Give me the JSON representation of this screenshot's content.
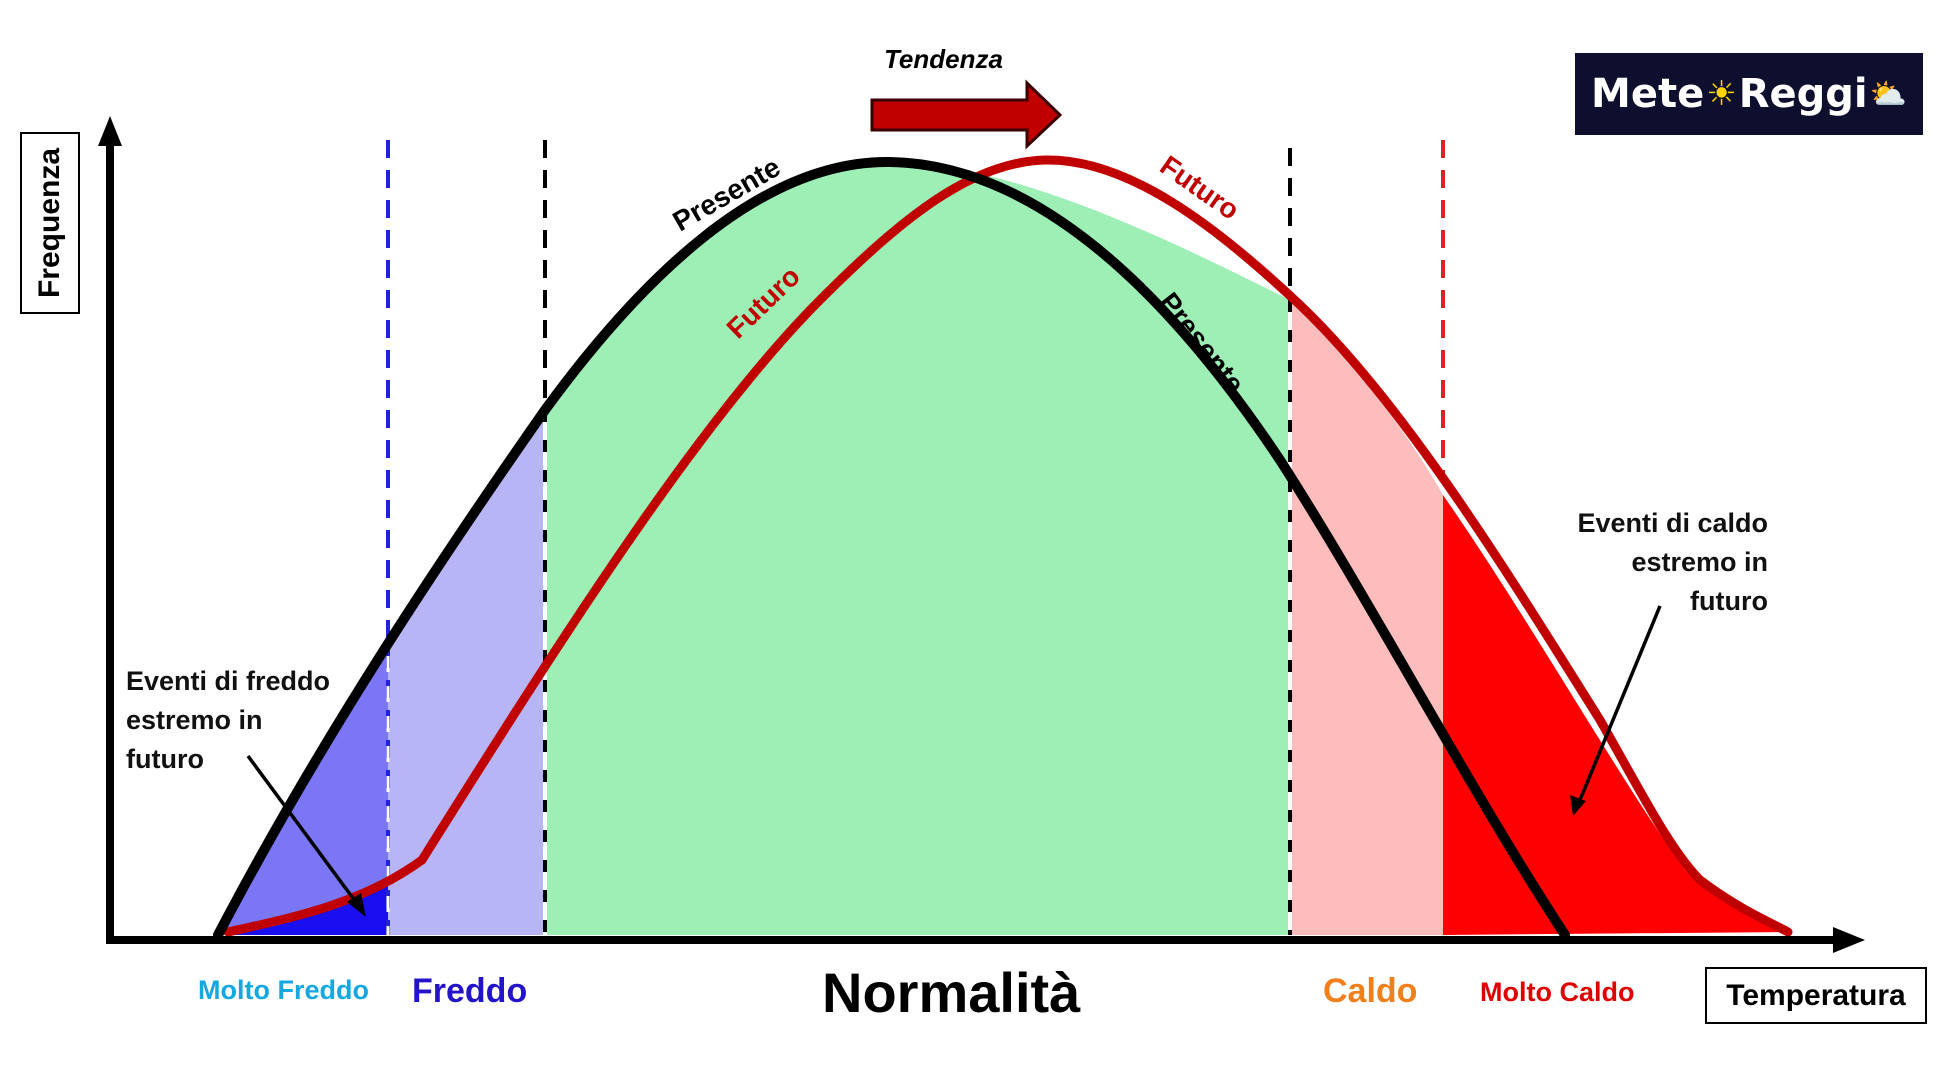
{
  "title_trend": "Tendenza",
  "logo": {
    "text_left": "Mete",
    "text_right": "Reggi",
    "sun_icon": "☀",
    "cloud_icon": "⛅"
  },
  "axes": {
    "y_label": "Frequenza",
    "x_label": "Temperatura"
  },
  "categories": {
    "molto_freddo": "Molto Freddo",
    "freddo": "Freddo",
    "normalita": "Normalità",
    "caldo": "Caldo",
    "molto_caldo": "Molto Caldo"
  },
  "curves": {
    "present_label": "Presente",
    "future_label": "Futuro"
  },
  "annotations": {
    "cold": [
      "Eventi di freddo",
      "estremo in",
      "futuro"
    ],
    "hot": [
      "Eventi di caldo",
      "estremo in",
      "futuro"
    ]
  },
  "colors": {
    "present_curve": "#000000",
    "future_curve": "#c00000",
    "molto_freddo_fill": "#7a76f5",
    "molto_freddo_future_fill": "#1a0ff0",
    "freddo_fill": "#b8b5f7",
    "normal_fill": "#9eefb6",
    "caldo_fill": "#fdbdbd",
    "molto_caldo_fill": "#ff0000",
    "cold_threshold_line": "#2222dd",
    "hot_threshold_line": "#dd2222",
    "trend_arrow": "#c00000"
  }
}
